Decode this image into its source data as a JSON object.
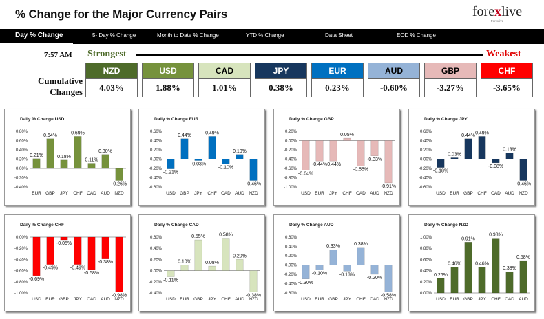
{
  "header": {
    "title": "% Change for the Major Currency Pairs"
  },
  "logo": {
    "text_a": "fore",
    "text_x": "x",
    "text_b": "live",
    "tagline": "Forexlive"
  },
  "tabs": [
    {
      "label": "Day % Change",
      "active": true
    },
    {
      "label": "5- Day % Change",
      "active": false
    },
    {
      "label": "Month to Date % Change",
      "active": false
    },
    {
      "label": "YTD % Change",
      "active": false
    },
    {
      "label": "Data Sheet",
      "active": false
    },
    {
      "label": "EOD % Change",
      "active": false
    }
  ],
  "time": "7:57 AM",
  "strongest_label": "Strongest",
  "weakest_label": "Weakest",
  "cumulative_label_1": "Cumulative",
  "cumulative_label_2": "Changes",
  "currencies": [
    {
      "name": "NZD",
      "value": "4.03%",
      "bg": "#4e6b2a",
      "fg": "#ffffff"
    },
    {
      "name": "USD",
      "value": "1.88%",
      "bg": "#76923c",
      "fg": "#ffffff"
    },
    {
      "name": "CAD",
      "value": "1.01%",
      "bg": "#d7e4bd",
      "fg": "#000000"
    },
    {
      "name": "JPY",
      "value": "0.38%",
      "bg": "#17375e",
      "fg": "#ffffff"
    },
    {
      "name": "EUR",
      "value": "0.23%",
      "bg": "#0070c0",
      "fg": "#ffffff"
    },
    {
      "name": "AUD",
      "value": "-0.60%",
      "bg": "#95b3d7",
      "fg": "#000000"
    },
    {
      "name": "GBP",
      "value": "-3.27%",
      "bg": "#e6b9b8",
      "fg": "#000000"
    },
    {
      "name": "CHF",
      "value": "-3.65%",
      "bg": "#ff0000",
      "fg": "#ffffff"
    }
  ],
  "chart_data": [
    {
      "type": "bar",
      "title": "Daily % Change USD",
      "categories": [
        "EUR",
        "GBP",
        "JPY",
        "CHF",
        "CAD",
        "AUD",
        "NZD"
      ],
      "values": [
        0.21,
        0.64,
        0.18,
        0.69,
        0.11,
        0.3,
        -0.26
      ],
      "labels": [
        "0.21%",
        "0.64%",
        "0.18%",
        "0.69%",
        "0.11%",
        "0.30%",
        "-0.26%"
      ],
      "yticks": [
        "0.80%",
        "0.60%",
        "0.40%",
        "0.20%",
        "0.00%",
        "-0.20%",
        "-0.40%"
      ],
      "ylim": [
        -0.4,
        0.8
      ],
      "color": "#76923c"
    },
    {
      "type": "bar",
      "title": "Daily % Change EUR",
      "categories": [
        "USD",
        "GBP",
        "JPY",
        "CHF",
        "CAD",
        "AUD",
        "NZD"
      ],
      "values": [
        -0.21,
        0.44,
        -0.03,
        0.49,
        -0.1,
        0.1,
        -0.46
      ],
      "labels": [
        "-0.21%",
        "0.44%",
        "-0.03%",
        "0.49%",
        "-0.10%",
        "0.10%",
        "-0.46%"
      ],
      "yticks": [
        "0.60%",
        "0.40%",
        "0.20%",
        "0.00%",
        "-0.20%",
        "-0.40%",
        "-0.60%"
      ],
      "ylim": [
        -0.6,
        0.6
      ],
      "color": "#0070c0"
    },
    {
      "type": "bar",
      "title": "Daily % Change GBP",
      "categories": [
        "USD",
        "EUR",
        "JPY",
        "CHF",
        "CAD",
        "AUD",
        "NZD"
      ],
      "values": [
        -0.64,
        -0.44,
        -0.44,
        0.05,
        -0.55,
        -0.33,
        -0.91
      ],
      "labels": [
        "-0.64%",
        "-0.44%",
        "-0.44%",
        "0.05%",
        "-0.55%",
        "-0.33%",
        "-0.91%"
      ],
      "yticks": [
        "0.20%",
        "0.00%",
        "-0.20%",
        "-0.40%",
        "-0.60%",
        "-0.80%",
        "-1.00%"
      ],
      "ylim": [
        -1.0,
        0.2
      ],
      "color": "#e6b9b8"
    },
    {
      "type": "bar",
      "title": "Daily % Change JPY",
      "categories": [
        "USD",
        "EUR",
        "GBP",
        "CHF",
        "CAD",
        "AUD",
        "NZD"
      ],
      "values": [
        -0.18,
        0.03,
        0.44,
        0.49,
        -0.08,
        0.13,
        -0.46
      ],
      "labels": [
        "-0.18%",
        "0.03%",
        "0.44%",
        "0.49%",
        "-0.08%",
        "0.13%",
        "-0.46%"
      ],
      "yticks": [
        "0.60%",
        "0.40%",
        "0.20%",
        "0.00%",
        "-0.20%",
        "-0.40%",
        "-0.60%"
      ],
      "ylim": [
        -0.6,
        0.6
      ],
      "color": "#17375e"
    },
    {
      "type": "bar",
      "title": "Daily % Change CHF",
      "categories": [
        "USD",
        "EUR",
        "GBP",
        "JPY",
        "CAD",
        "AUD",
        "NZD"
      ],
      "values": [
        -0.69,
        -0.49,
        -0.05,
        -0.49,
        -0.58,
        -0.38,
        -0.98
      ],
      "labels": [
        "-0.69%",
        "-0.49%",
        "-0.05%",
        "-0.49%",
        "-0.58%",
        "-0.38%",
        "-0.98%"
      ],
      "yticks": [
        "0.00%",
        "-0.20%",
        "-0.40%",
        "-0.60%",
        "-0.80%",
        "-1.00%"
      ],
      "ylim": [
        -1.0,
        0.0
      ],
      "color": "#ff0000"
    },
    {
      "type": "bar",
      "title": "Daily % Change CAD",
      "categories": [
        "USD",
        "EUR",
        "GBP",
        "JPY",
        "CHF",
        "AUD",
        "NZD"
      ],
      "values": [
        -0.11,
        0.1,
        0.55,
        0.08,
        0.58,
        0.2,
        -0.38
      ],
      "labels": [
        "-0.11%",
        "0.10%",
        "0.55%",
        "0.08%",
        "0.58%",
        "0.20%",
        "-0.38%"
      ],
      "yticks": [
        "0.60%",
        "0.40%",
        "0.20%",
        "0.00%",
        "-0.20%",
        "-0.40%"
      ],
      "ylim": [
        -0.4,
        0.6
      ],
      "color": "#d7e4bd"
    },
    {
      "type": "bar",
      "title": "Daily % Change AUD",
      "categories": [
        "USD",
        "EUR",
        "GBP",
        "JPY",
        "CHF",
        "CAD",
        "NZD"
      ],
      "values": [
        -0.3,
        -0.1,
        0.33,
        -0.13,
        0.38,
        -0.2,
        -0.58
      ],
      "labels": [
        "-0.30%",
        "-0.10%",
        "0.33%",
        "-0.13%",
        "0.38%",
        "-0.20%",
        "-0.58%"
      ],
      "yticks": [
        "0.60%",
        "0.40%",
        "0.20%",
        "0.00%",
        "-0.20%",
        "-0.40%",
        "-0.60%"
      ],
      "ylim": [
        -0.6,
        0.6
      ],
      "color": "#95b3d7"
    },
    {
      "type": "bar",
      "title": "Daily % Change NZD",
      "categories": [
        "USD",
        "EUR",
        "GBP",
        "JPY",
        "CHF",
        "CAD",
        "AUD"
      ],
      "values": [
        0.26,
        0.46,
        0.91,
        0.46,
        0.98,
        0.38,
        0.58
      ],
      "labels": [
        "0.26%",
        "0.46%",
        "0.91%",
        "0.46%",
        "0.98%",
        "0.38%",
        "0.58%"
      ],
      "yticks": [
        "1.00%",
        "0.80%",
        "0.60%",
        "0.40%",
        "0.20%",
        "0.00%"
      ],
      "ylim": [
        0.0,
        1.0
      ],
      "color": "#4e6b2a"
    }
  ]
}
